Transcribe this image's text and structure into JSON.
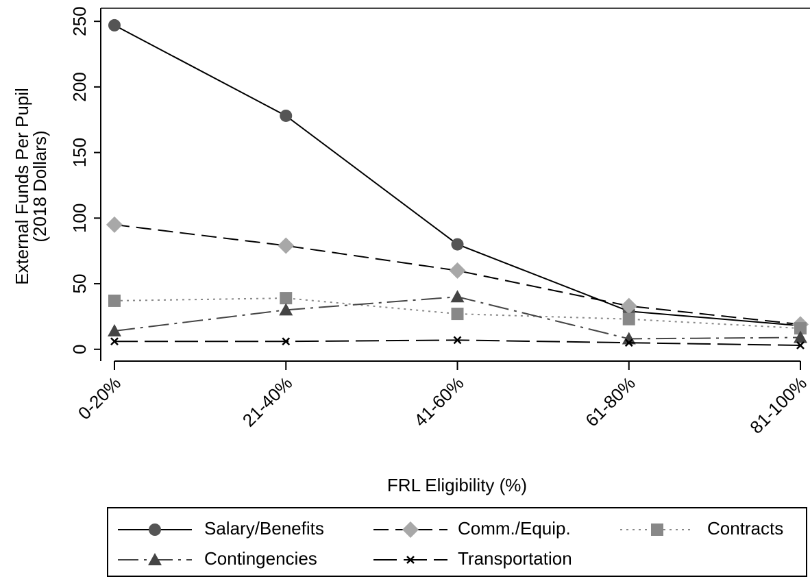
{
  "chart_data": {
    "type": "line",
    "y_label": [
      "External Funds Per Pupil",
      "(2018 Dollars)"
    ],
    "x_label": "FRL Eligibility (%)",
    "categories": [
      "0-20%",
      "21-40%",
      "41-60%",
      "61-80%",
      "81-100%"
    ],
    "ylim": [
      -9,
      260
    ],
    "yticks": [
      0,
      50,
      100,
      150,
      200,
      250
    ],
    "series": [
      {
        "name": "Salary/Benefits",
        "color": "#555555",
        "line_style": "solid",
        "marker": "circle",
        "values": [
          247,
          178,
          80,
          29,
          18
        ]
      },
      {
        "name": "Comm./Equip.",
        "color": "#a8a8a8",
        "line_style": "dashed",
        "marker": "diamond",
        "values": [
          95,
          79,
          60,
          33,
          19
        ]
      },
      {
        "name": "Contracts",
        "color": "#888888",
        "line_style": "dotted",
        "marker": "square",
        "values": [
          37,
          39,
          27,
          23,
          16
        ]
      },
      {
        "name": "Contingencies",
        "color": "#444444",
        "line_style": "dashdot",
        "marker": "triangle",
        "values": [
          14,
          30,
          40,
          8,
          9
        ]
      },
      {
        "name": "Transportation",
        "color": "#000000",
        "line_style": "longdash",
        "marker": "x",
        "values": [
          6,
          6,
          7,
          5,
          3
        ]
      }
    ]
  }
}
